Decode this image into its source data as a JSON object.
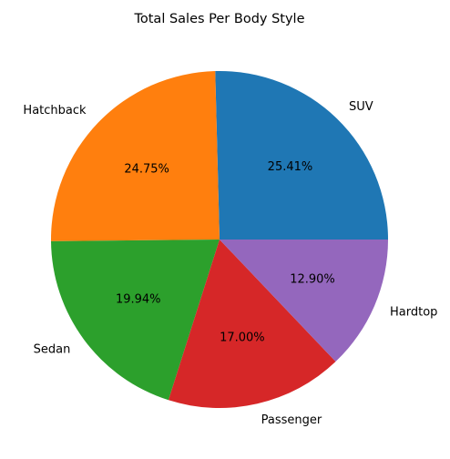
{
  "chart_data": {
    "type": "pie",
    "title": "Total Sales Per Body Style",
    "categories": [
      "SUV",
      "Hatchback",
      "Sedan",
      "Passenger",
      "Hardtop"
    ],
    "values": [
      25.41,
      24.75,
      19.94,
      17.0,
      12.9
    ],
    "percent_labels": [
      "25.41%",
      "24.75%",
      "19.94%",
      "17.00%",
      "12.90%"
    ],
    "colors": [
      "#1f77b4",
      "#ff7f0e",
      "#2ca02c",
      "#d62728",
      "#9467bd"
    ],
    "start_angle_deg": 0,
    "direction": "counterclockwise",
    "legend": "none"
  }
}
